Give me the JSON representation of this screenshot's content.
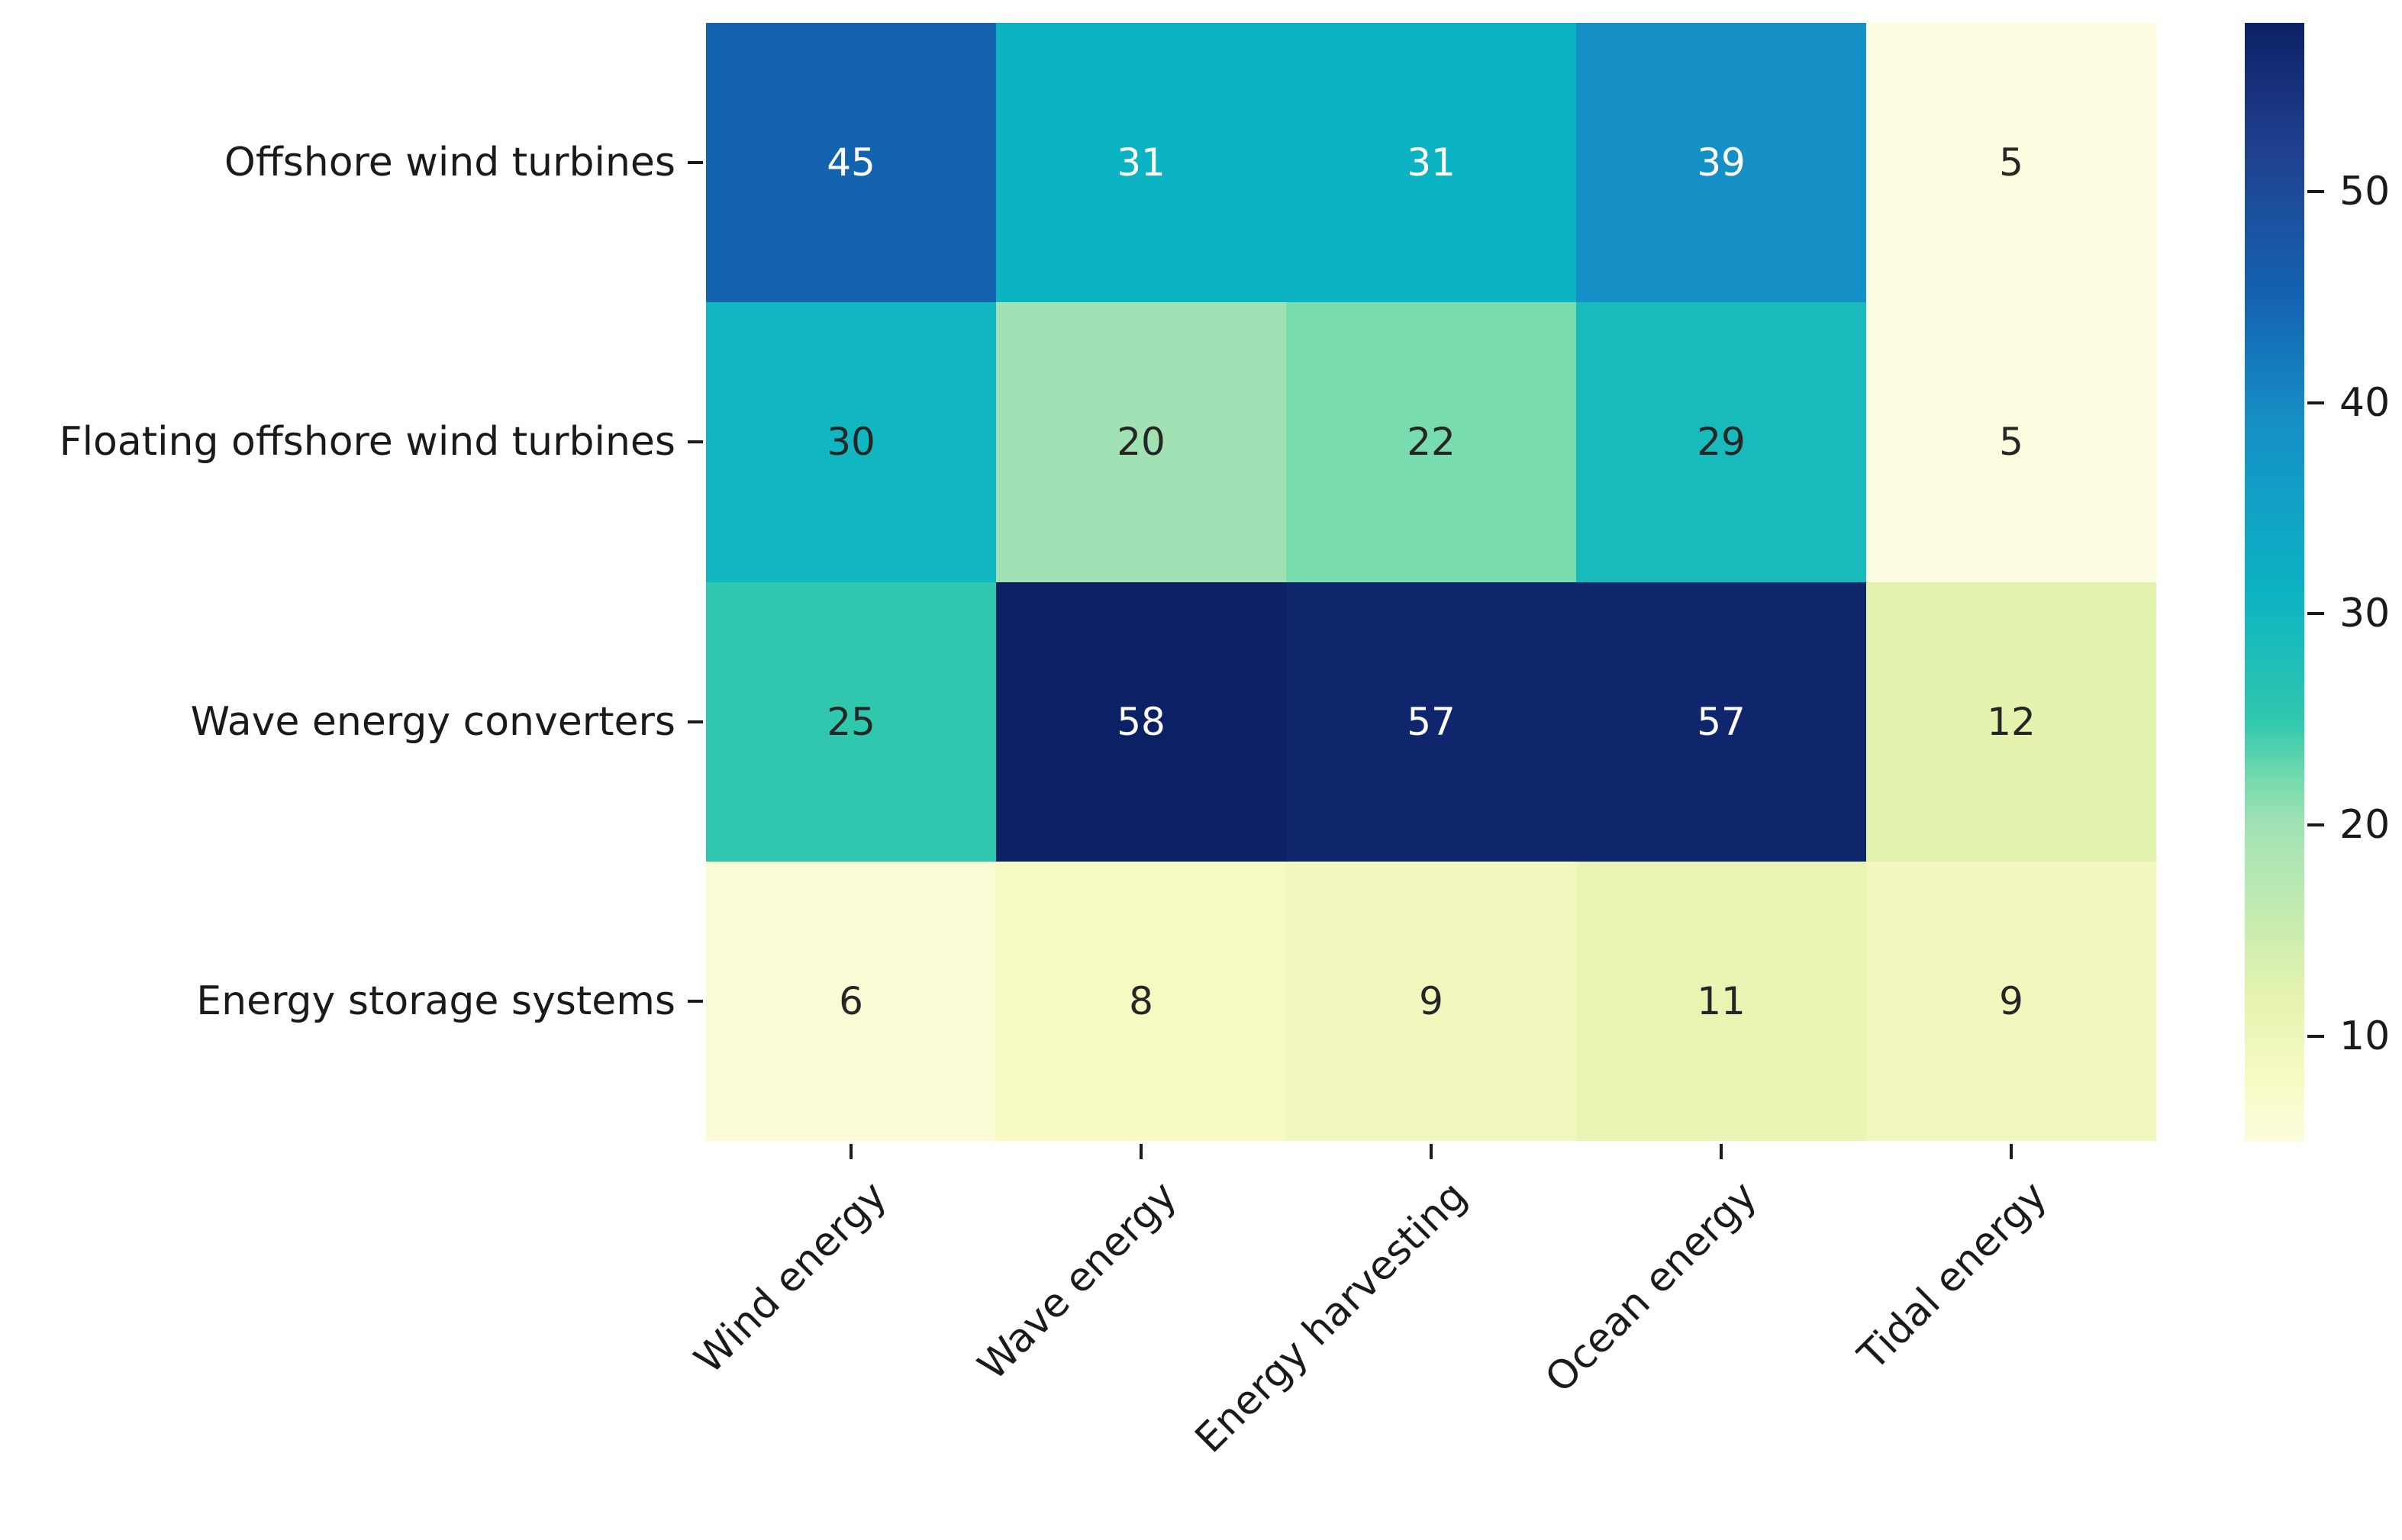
{
  "chart_data": {
    "type": "heatmap",
    "rows": [
      "Offshore wind turbines",
      "Floating offshore wind turbines",
      "Wave energy converters",
      "Energy storage systems"
    ],
    "columns": [
      "Wind energy",
      "Wave energy",
      "Energy harvesting",
      "Ocean energy",
      "Tidal energy"
    ],
    "values": [
      [
        45,
        31,
        31,
        39,
        5
      ],
      [
        30,
        20,
        22,
        29,
        5
      ],
      [
        25,
        58,
        57,
        57,
        12
      ],
      [
        6,
        8,
        9,
        11,
        9
      ]
    ],
    "vmin": 5,
    "vmax": 58,
    "colorbar_ticks": [
      10,
      20,
      30,
      40,
      50
    ],
    "colorbar_position": "right",
    "grid": false,
    "annot_white_min": 31,
    "annot_dark_color": "#262626",
    "annot_light_color": "#ffffff",
    "colormap_name": "YlGnBu",
    "colormap_stops": [
      {
        "v": 5,
        "color": "#fdfce0"
      },
      {
        "v": 8,
        "color": "#f7fac2"
      },
      {
        "v": 12,
        "color": "#e4f3ae"
      },
      {
        "v": 20,
        "color": "#a0e2b4"
      },
      {
        "v": 22,
        "color": "#79dcae"
      },
      {
        "v": 25,
        "color": "#2fc7ae"
      },
      {
        "v": 31,
        "color": "#0cb3c3"
      },
      {
        "v": 39,
        "color": "#1590c6"
      },
      {
        "v": 45,
        "color": "#1463b1"
      },
      {
        "v": 52,
        "color": "#20418f"
      },
      {
        "v": 58,
        "color": "#0c2065"
      }
    ]
  }
}
